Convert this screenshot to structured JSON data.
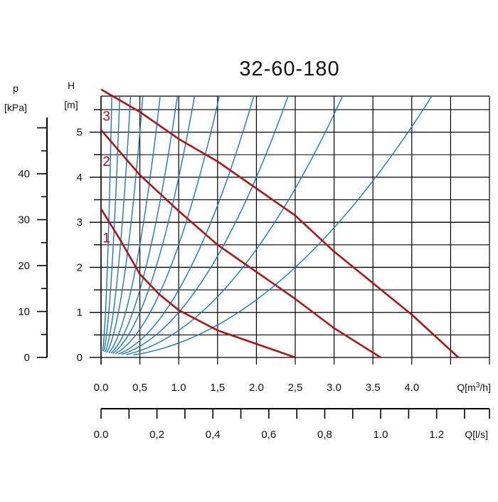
{
  "chart_data": {
    "type": "line",
    "title": "32-60-180",
    "x_axis_primary": {
      "label": "Q[m³/h]",
      "range": [
        0.0,
        5.0
      ],
      "ticks": [
        {
          "value": 0.0,
          "label": "0.0"
        },
        {
          "value": 0.5,
          "label": "0,5"
        },
        {
          "value": 1.0,
          "label": "1.0"
        },
        {
          "value": 1.5,
          "label": "1,5"
        },
        {
          "value": 2.0,
          "label": "2.0"
        },
        {
          "value": 2.5,
          "label": "2,5"
        },
        {
          "value": 3.0,
          "label": "3.0"
        },
        {
          "value": 3.5,
          "label": "3.5"
        },
        {
          "value": 4.0,
          "label": "4.0"
        }
      ]
    },
    "x_axis_secondary": {
      "label": "Q[l/s]",
      "range": [
        0.0,
        1.389
      ],
      "ticks": [
        {
          "value": 0.0,
          "label": "0.0"
        },
        {
          "value": 0.2,
          "label": "0,2"
        },
        {
          "value": 0.4,
          "label": "0,4"
        },
        {
          "value": 0.6,
          "label": "0,6"
        },
        {
          "value": 0.8,
          "label": "0,8"
        },
        {
          "value": 1.0,
          "label": "1.0"
        },
        {
          "value": 1.2,
          "label": "1.2"
        }
      ],
      "minor_step": 0.1
    },
    "y_axis_primary": {
      "label_top": "H",
      "label_unit": "[m]",
      "range": [
        0.0,
        5.8
      ],
      "ticks": [
        {
          "value": 0,
          "label": "0"
        },
        {
          "value": 1,
          "label": "1"
        },
        {
          "value": 2,
          "label": "2"
        },
        {
          "value": 3,
          "label": "3"
        },
        {
          "value": 4,
          "label": "4"
        },
        {
          "value": 5,
          "label": "5"
        }
      ],
      "grid_minor_step": 0.5
    },
    "y_axis_secondary": {
      "label_top": "p",
      "label_unit": "[kPa]",
      "range": [
        0,
        56.9
      ],
      "ticks": [
        {
          "value": 0,
          "label": "0"
        },
        {
          "value": 10,
          "label": "10"
        },
        {
          "value": 20,
          "label": "20"
        },
        {
          "value": 30,
          "label": "30"
        },
        {
          "value": 40,
          "label": "40"
        }
      ],
      "minor_step": 5
    },
    "grid": true,
    "series": [
      {
        "label": "1",
        "color": "#a8161b",
        "points": [
          [
            0.0,
            3.3
          ],
          [
            0.25,
            2.6
          ],
          [
            0.5,
            1.85
          ],
          [
            0.75,
            1.4
          ],
          [
            1.0,
            1.05
          ],
          [
            1.5,
            0.6
          ],
          [
            2.0,
            0.3
          ],
          [
            2.5,
            0.0
          ]
        ]
      },
      {
        "label": "2",
        "color": "#a8161b",
        "points": [
          [
            0.0,
            5.05
          ],
          [
            0.5,
            4.05
          ],
          [
            1.0,
            3.25
          ],
          [
            1.5,
            2.5
          ],
          [
            2.0,
            1.9
          ],
          [
            2.5,
            1.3
          ],
          [
            3.0,
            0.65
          ],
          [
            3.6,
            0.0
          ]
        ]
      },
      {
        "label": "3",
        "color": "#a8161b",
        "points": [
          [
            0.0,
            5.95
          ],
          [
            0.5,
            5.45
          ],
          [
            1.0,
            4.85
          ],
          [
            1.5,
            4.35
          ],
          [
            2.0,
            3.75
          ],
          [
            2.5,
            3.15
          ],
          [
            3.0,
            2.35
          ],
          [
            3.5,
            1.65
          ],
          [
            4.0,
            0.95
          ],
          [
            4.6,
            0.0
          ]
        ]
      }
    ],
    "system_curves": {
      "color": "#1f77b4",
      "family": "H = k·Q²",
      "k_values": [
        300,
        100,
        40,
        20,
        10,
        6,
        4,
        2.5,
        1.5,
        1.0,
        0.6,
        0.32
      ]
    }
  }
}
